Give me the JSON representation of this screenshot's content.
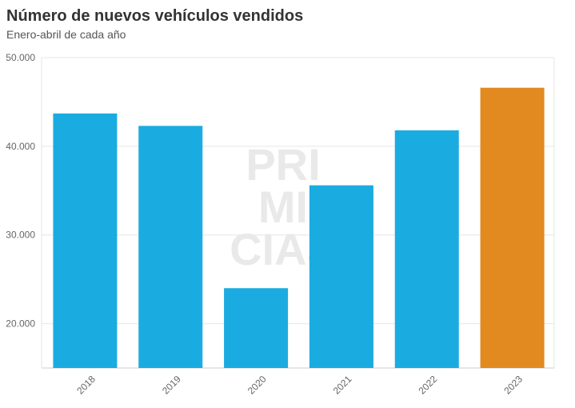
{
  "chart_data": {
    "type": "bar",
    "title": "Número de nuevos vehículos vendidos",
    "subtitle": "Enero-abril de cada año",
    "categories": [
      "2018",
      "2019",
      "2020",
      "2021",
      "2022",
      "2023"
    ],
    "values": [
      43700,
      42300,
      24000,
      35600,
      41800,
      46600
    ],
    "colors": [
      "#1aace0",
      "#1aace0",
      "#1aace0",
      "#1aace0",
      "#1aace0",
      "#e28a1f"
    ],
    "yticks": [
      "20.000",
      "30.000",
      "40.000",
      "50.000"
    ],
    "ytick_values": [
      20000,
      30000,
      40000,
      50000
    ],
    "ylim": [
      15000,
      50000
    ],
    "grid": true,
    "xlabel": "",
    "ylabel": ""
  },
  "watermark": {
    "lines": [
      "PRI",
      "MI",
      "CIAS"
    ]
  }
}
